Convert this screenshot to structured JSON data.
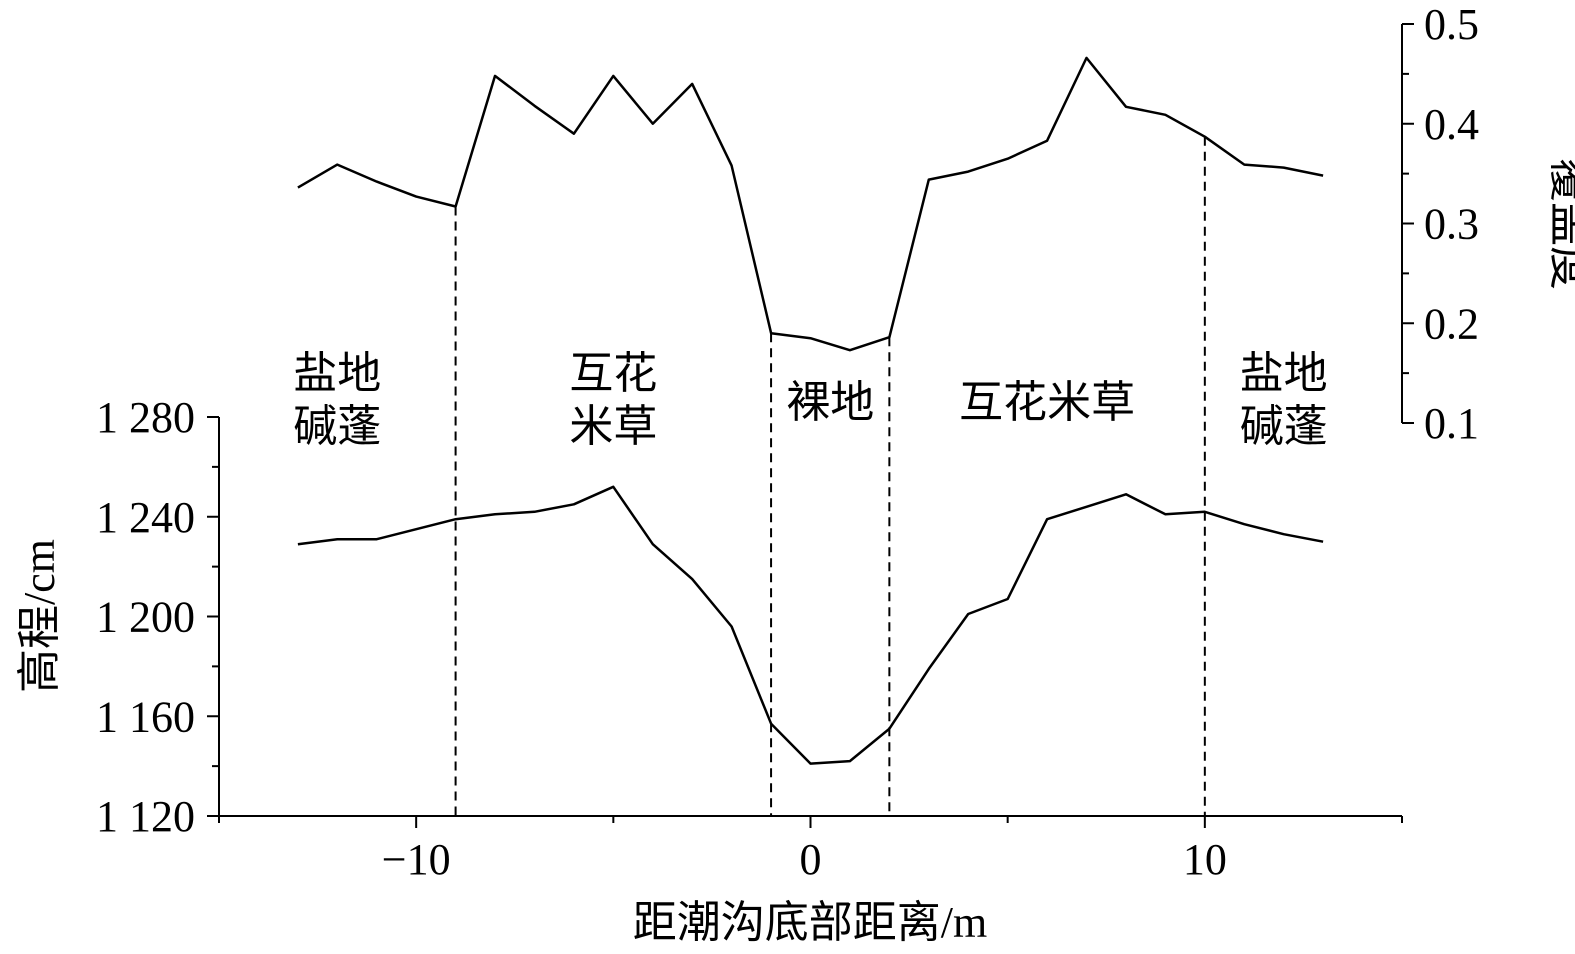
{
  "chart_data": {
    "type": "line",
    "xlabel": "距潮沟底部距离/m",
    "ylabel": "高程/cm",
    "y2label": "覆盖度",
    "x_ticks": [
      -10,
      0,
      10
    ],
    "y_ticks": [
      1120,
      1160,
      1200,
      1240,
      1280
    ],
    "y_tick_labels": [
      "1 120",
      "1 160",
      "1 200",
      "1 240",
      "1 280"
    ],
    "y2_ticks": [
      0.1,
      0.2,
      0.3,
      0.4,
      0.5
    ],
    "y2_tick_labels": [
      "0.1",
      "0.2",
      "0.3",
      "0.4",
      "0.5"
    ],
    "xlim": [
      -15,
      15
    ],
    "ylim": [
      1120,
      1280
    ],
    "y2lim": [
      0.1,
      0.5
    ],
    "dividers_x": [
      -9,
      -1,
      2,
      10
    ],
    "zone_labels": [
      {
        "lines": [
          "盐地",
          "碱蓬"
        ],
        "x": -12
      },
      {
        "lines": [
          "互花",
          "米草"
        ],
        "x": -5
      },
      {
        "lines": [
          "裸地"
        ],
        "x": 0.5
      },
      {
        "lines": [
          "互花米草"
        ],
        "x": 6
      },
      {
        "lines": [
          "盐地",
          "碱蓬"
        ],
        "x": 12
      }
    ],
    "series": [
      {
        "axis": "y",
        "x": [
          -13,
          -12,
          -11,
          -10,
          -9,
          -8,
          -7,
          -6,
          -5,
          -4,
          -3,
          -2,
          -1,
          0,
          1,
          2,
          3,
          4,
          5,
          6,
          7,
          8,
          9,
          10,
          11,
          12,
          13
        ],
        "values": [
          1229,
          1231,
          1231,
          1235,
          1239,
          1241,
          1242,
          1245,
          1252,
          1229,
          1215,
          1196,
          1157,
          1141,
          1142,
          1155,
          1179,
          1201,
          1207,
          1239,
          1244,
          1249,
          1241,
          1242,
          1237,
          1233,
          1230
        ]
      },
      {
        "axis": "y2",
        "x": [
          -13,
          -12,
          -11,
          -10,
          -9,
          -8,
          -7,
          -6,
          -5,
          -4,
          -3,
          -2,
          -1,
          0,
          1,
          2,
          3,
          4,
          5,
          6,
          7,
          8,
          9,
          10,
          11,
          12,
          13
        ],
        "values": [
          0.336,
          0.359,
          0.342,
          0.327,
          0.317,
          0.448,
          0.418,
          0.39,
          0.448,
          0.4,
          0.44,
          0.358,
          0.19,
          0.185,
          0.173,
          0.186,
          0.344,
          0.352,
          0.365,
          0.383,
          0.466,
          0.417,
          0.409,
          0.387,
          0.359,
          0.356,
          0.348
        ]
      }
    ]
  }
}
